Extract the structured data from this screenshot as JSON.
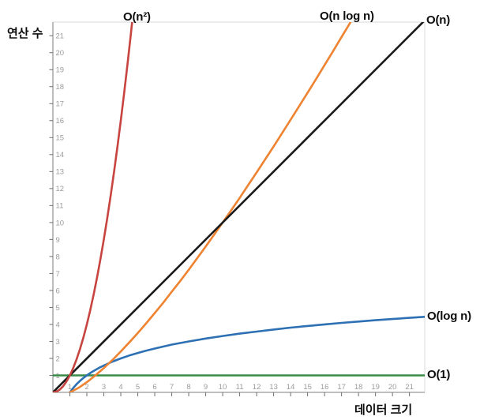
{
  "chart_data": {
    "type": "line",
    "title": "",
    "xlabel": "데이터 크기",
    "ylabel": "연산 수",
    "xlim": [
      0,
      21.9
    ],
    "ylim": [
      0,
      21.8
    ],
    "grid": false,
    "legend_position": "labels-at-curve-ends",
    "x_ticks": [
      1,
      2,
      3,
      4,
      5,
      6,
      7,
      8,
      9,
      10,
      11,
      12,
      13,
      14,
      15,
      16,
      17,
      18,
      19,
      20,
      21
    ],
    "y_ticks": [
      1,
      2,
      3,
      4,
      5,
      6,
      7,
      8,
      9,
      10,
      11,
      12,
      13,
      14,
      15,
      16,
      17,
      18,
      19,
      20,
      21
    ],
    "axis_color": "#999999",
    "border_color": "#d9d9d9",
    "tick_mark_color": "#6e6e6e",
    "tick_label_color": "#9b9b9b",
    "series": [
      {
        "name": "O(1)",
        "function": "y = 1",
        "color": "#388c46",
        "points": [
          [
            0,
            1
          ],
          [
            21.9,
            1
          ]
        ]
      },
      {
        "name": "O(log n)",
        "function": "y = log2(n)",
        "color": "#2d70b3",
        "points": [
          [
            1,
            0
          ],
          [
            1.2,
            0.26
          ],
          [
            1.4,
            0.49
          ],
          [
            1.6,
            0.68
          ],
          [
            1.8,
            0.85
          ],
          [
            2,
            1
          ],
          [
            2.25,
            1.17
          ],
          [
            2.5,
            1.32
          ],
          [
            2.75,
            1.46
          ],
          [
            3,
            1.58
          ],
          [
            3.5,
            1.81
          ],
          [
            4,
            2
          ],
          [
            4.5,
            2.17
          ],
          [
            5,
            2.32
          ],
          [
            5.5,
            2.46
          ],
          [
            6,
            2.58
          ],
          [
            7,
            2.81
          ],
          [
            8,
            3
          ],
          [
            9,
            3.17
          ],
          [
            10,
            3.32
          ],
          [
            11,
            3.46
          ],
          [
            12,
            3.58
          ],
          [
            13,
            3.7
          ],
          [
            14,
            3.81
          ],
          [
            15,
            3.91
          ],
          [
            16,
            4
          ],
          [
            17,
            4.09
          ],
          [
            18,
            4.17
          ],
          [
            19,
            4.25
          ],
          [
            20,
            4.32
          ],
          [
            21,
            4.39
          ],
          [
            21.9,
            4.45
          ]
        ]
      },
      {
        "name": "O(n log n)",
        "function": "y = n·log10(n)",
        "color": "#ee8331",
        "points": [
          [
            1,
            0
          ],
          [
            1.5,
            0.26
          ],
          [
            2,
            0.6
          ],
          [
            2.5,
            1.0
          ],
          [
            3,
            1.43
          ],
          [
            3.5,
            1.9
          ],
          [
            4,
            2.41
          ],
          [
            4.5,
            2.94
          ],
          [
            5,
            3.49
          ],
          [
            5.5,
            4.07
          ],
          [
            6,
            4.67
          ],
          [
            6.5,
            5.28
          ],
          [
            7,
            5.92
          ],
          [
            7.5,
            6.56
          ],
          [
            8,
            7.22
          ],
          [
            8.5,
            7.9
          ],
          [
            9,
            8.59
          ],
          [
            9.5,
            9.29
          ],
          [
            10,
            10
          ],
          [
            10.5,
            10.72
          ],
          [
            11,
            11.45
          ],
          [
            11.5,
            12.2
          ],
          [
            12,
            12.95
          ],
          [
            12.5,
            13.71
          ],
          [
            13,
            14.48
          ],
          [
            13.5,
            15.26
          ],
          [
            14,
            16.05
          ],
          [
            14.5,
            16.84
          ],
          [
            15,
            17.64
          ],
          [
            15.5,
            18.45
          ],
          [
            16,
            19.27
          ],
          [
            16.5,
            20.09
          ],
          [
            17,
            20.92
          ],
          [
            17.5,
            21.75
          ],
          [
            18,
            22.59
          ]
        ]
      },
      {
        "name": "O(n)",
        "function": "y = n",
        "color": "#1a1a1a",
        "points": [
          [
            0,
            0
          ],
          [
            21.9,
            21.9
          ]
        ]
      },
      {
        "name": "O(n²)",
        "function": "y = n²",
        "color": "#c74440",
        "points": [
          [
            0,
            0
          ],
          [
            0.2,
            0.04
          ],
          [
            0.4,
            0.16
          ],
          [
            0.6,
            0.36
          ],
          [
            0.8,
            0.64
          ],
          [
            1,
            1
          ],
          [
            1.2,
            1.44
          ],
          [
            1.4,
            1.96
          ],
          [
            1.6,
            2.56
          ],
          [
            1.8,
            3.24
          ],
          [
            2,
            4
          ],
          [
            2.2,
            4.84
          ],
          [
            2.4,
            5.76
          ],
          [
            2.6,
            6.76
          ],
          [
            2.8,
            7.84
          ],
          [
            3,
            9
          ],
          [
            3.2,
            10.24
          ],
          [
            3.4,
            11.56
          ],
          [
            3.6,
            12.96
          ],
          [
            3.8,
            14.44
          ],
          [
            4,
            16
          ],
          [
            4.2,
            17.64
          ],
          [
            4.4,
            19.36
          ],
          [
            4.6,
            21.16
          ],
          [
            4.8,
            23.04
          ]
        ]
      }
    ],
    "notable_points": [
      {
        "label": "O(n) and O(n log n) intersect",
        "x": 10,
        "y": 10
      },
      {
        "label": "O(log n) and O(n log n) intersect",
        "x": 3.3,
        "y": 1.7
      }
    ]
  }
}
